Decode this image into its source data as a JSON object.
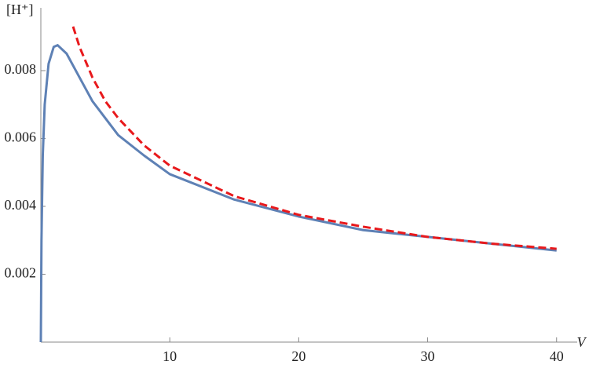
{
  "chart_data": {
    "type": "line",
    "x_label": "V",
    "y_label": "[H⁺]",
    "series": [
      {
        "color": "#5e81b5",
        "dash": false,
        "x": [
          0,
          0.05,
          0.15,
          0.3,
          0.6,
          1.0,
          1.3,
          2,
          3,
          4,
          5,
          6,
          8,
          10,
          15,
          20,
          25,
          30,
          35,
          40
        ],
        "values": [
          0,
          0.003,
          0.0055,
          0.007,
          0.0082,
          0.0087,
          0.00875,
          0.0085,
          0.0078,
          0.0071,
          0.0066,
          0.0061,
          0.0055,
          0.00495,
          0.0042,
          0.0037,
          0.0033,
          0.0031,
          0.0029,
          0.0027
        ]
      },
      {
        "color": "#e8191c",
        "dash": true,
        "x": [
          2.5,
          3,
          4,
          5,
          6,
          8,
          10,
          15,
          20,
          25,
          30,
          35,
          40
        ],
        "values": [
          0.0093,
          0.0087,
          0.0078,
          0.0071,
          0.0066,
          0.0058,
          0.0052,
          0.0043,
          0.00375,
          0.0034,
          0.0031,
          0.0029,
          0.00275
        ]
      }
    ],
    "xlim": [
      0,
      41.6
    ],
    "ylim": [
      0,
      0.00985
    ],
    "xticks": [
      10,
      20,
      30,
      40
    ],
    "yticks": [
      0.002,
      0.004,
      0.006,
      0.008
    ]
  }
}
